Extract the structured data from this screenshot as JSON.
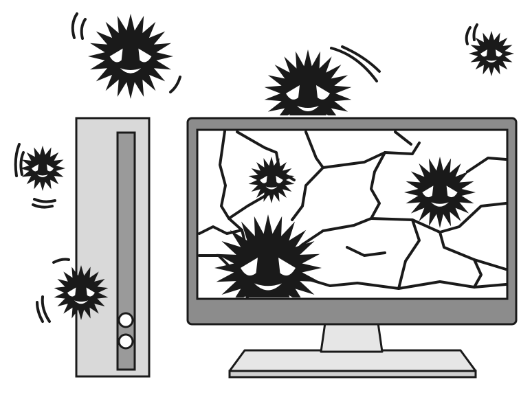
{
  "scene": {
    "colors": {
      "background": "#ffffff",
      "outline": "#1a1a1a",
      "case_fill": "#d9d9d9",
      "bezel_fill": "#8c8c8c",
      "slot_fill": "#9a9a9a",
      "stand_fill": "#e6e6e6",
      "screen_fill": "#ffffff",
      "virus_fill": "#1a1a1a",
      "eye_fill": "#ffffff"
    },
    "icons": {
      "virus": "virus-icon",
      "cracked_screen": "cracked-screen-icon",
      "computer_tower": "computer-tower-icon",
      "monitor": "monitor-icon"
    }
  }
}
